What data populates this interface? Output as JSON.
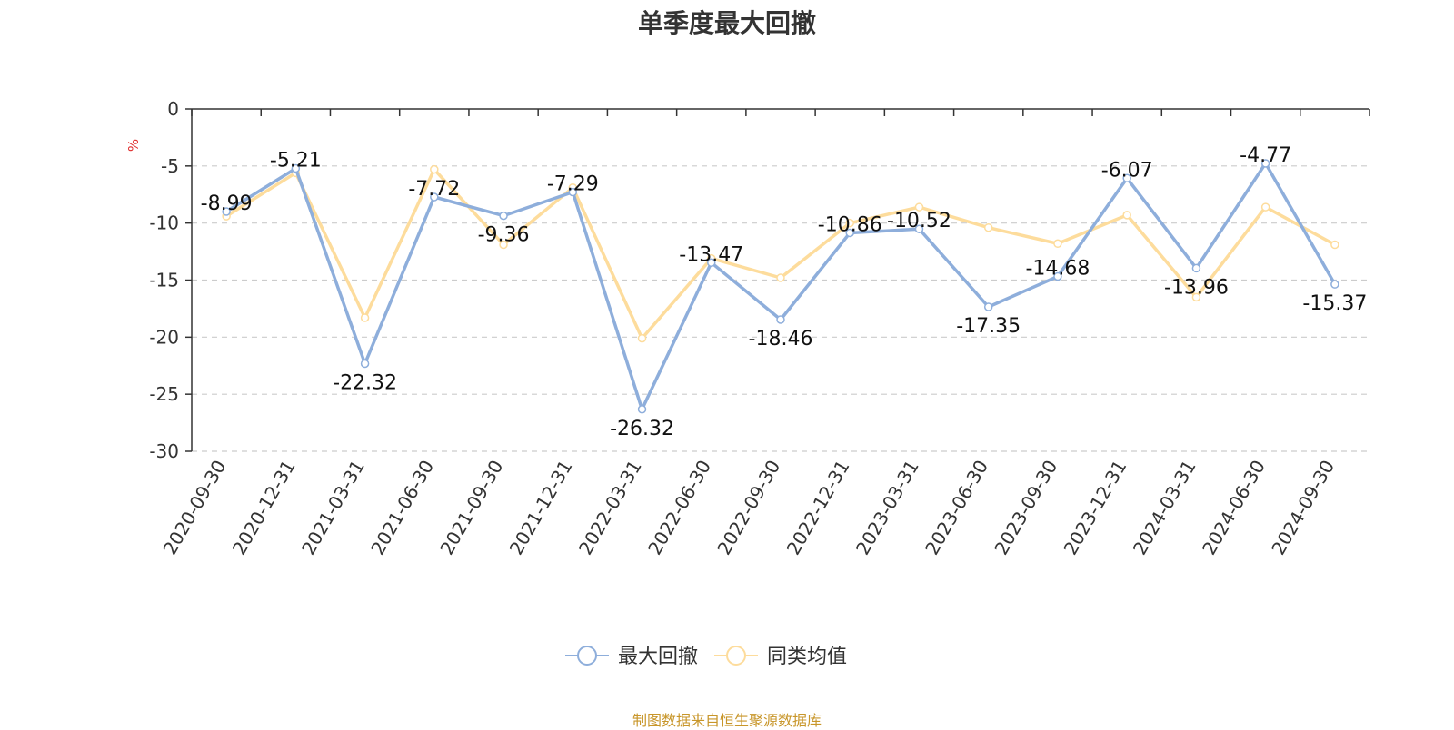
{
  "chart_data": {
    "type": "line",
    "title": "单季度最大回撤",
    "ylabel": "%",
    "ylim": [
      -30,
      0
    ],
    "yticks": [
      0,
      -5,
      -10,
      -15,
      -20,
      -25,
      -30
    ],
    "grid": true,
    "legend_position": "bottom",
    "categories": [
      "2020-09-30",
      "2020-12-31",
      "2021-03-31",
      "2021-06-30",
      "2021-09-30",
      "2021-12-31",
      "2022-03-31",
      "2022-06-30",
      "2022-09-30",
      "2022-12-31",
      "2023-03-31",
      "2023-06-30",
      "2023-09-30",
      "2023-12-31",
      "2024-03-31",
      "2024-06-30",
      "2024-09-30"
    ],
    "series": [
      {
        "name": "最大回撤",
        "color": "#8eaedb",
        "show_labels": true,
        "values": [
          -8.99,
          -5.21,
          -22.32,
          -7.72,
          -9.36,
          -7.29,
          -26.32,
          -13.47,
          -18.46,
          -10.86,
          -10.52,
          -17.35,
          -14.68,
          -6.07,
          -13.96,
          -4.77,
          -15.37
        ],
        "labels": [
          "-8.99",
          "-5.21",
          "-22.32",
          "-7.72",
          "-9.36",
          "-7.29",
          "-26.32",
          "-13.47",
          "-18.46",
          "-10.86",
          "-10.52",
          "-17.35",
          "-14.68",
          "-6.07",
          "-13.96",
          "-4.77",
          "-15.37"
        ]
      },
      {
        "name": "同类均值",
        "color": "#fddc9c",
        "show_labels": false,
        "values": [
          -9.4,
          -5.6,
          -18.3,
          -5.3,
          -11.9,
          -6.9,
          -20.1,
          -13.1,
          -14.8,
          -10.0,
          -8.6,
          -10.4,
          -11.8,
          -9.3,
          -16.5,
          -8.6,
          -11.9
        ]
      }
    ]
  },
  "footer": {
    "source": "制图数据来自恒生聚源数据库"
  }
}
